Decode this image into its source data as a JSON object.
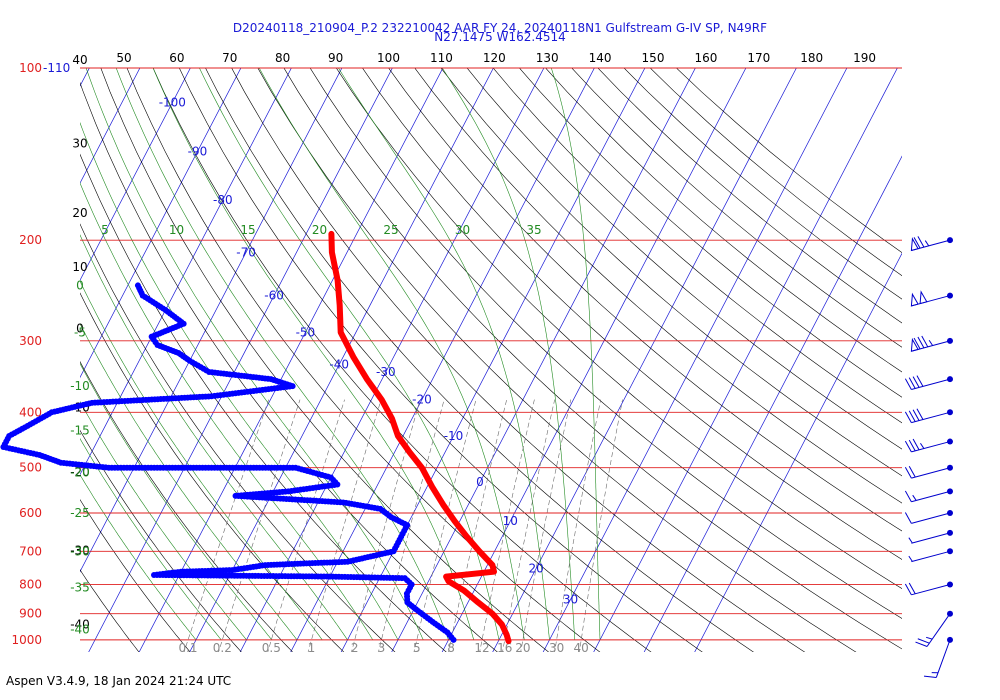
{
  "header": {
    "title_line1": "D20240118_210904_P.2 232210042 AAR FY 24, 20240118N1 Gulfstream G-IV SP, N49RF",
    "title_line2": "N27.1475 W162.4514"
  },
  "footer": {
    "version_text": "Aspen V3.4.9, 18 Jan 2024  21:24 UTC"
  },
  "chart_data": {
    "type": "skew-t",
    "colors": {
      "pressure_lines": "#e02020",
      "isotherms": "#1a1ad6",
      "dry_adiabats": "#000000",
      "moist_adiabats": "#228b22",
      "mixing_ratio": "#6a6a6a",
      "temperature_trace": "#ff0000",
      "dewpoint_trace": "#0000ff",
      "wind_barbs": "#0000cd",
      "theta_labels": "#000000",
      "pressure_labels": "#e02020"
    },
    "pressure_axis": {
      "levels": [
        100,
        200,
        300,
        400,
        500,
        600,
        700,
        800,
        900,
        1000
      ],
      "labels": [
        "100",
        "200",
        "300",
        "400",
        "500",
        "600",
        "700",
        "800",
        "900",
        "1000"
      ],
      "top_range_label": "-110"
    },
    "top_scale_labels": [
      "50",
      "60",
      "70",
      "80",
      "90",
      "100",
      "110",
      "120",
      "130",
      "140",
      "150",
      "160",
      "170",
      "180",
      "190"
    ],
    "isotherm_labels": [
      {
        "text": "-100",
        "t": -100,
        "p": 115
      },
      {
        "text": "-90",
        "t": -90,
        "p": 140
      },
      {
        "text": "-80",
        "t": -80,
        "p": 170
      },
      {
        "text": "-70",
        "t": -70,
        "p": 210
      },
      {
        "text": "-60",
        "t": -60,
        "p": 250
      },
      {
        "text": "-50",
        "t": -50,
        "p": 290
      },
      {
        "text": "-40",
        "t": -40,
        "p": 330
      },
      {
        "text": "-30",
        "t": -30,
        "p": 340
      },
      {
        "text": "-20",
        "t": -20,
        "p": 380
      },
      {
        "text": "-10",
        "t": -10,
        "p": 440
      },
      {
        "text": "0",
        "t": 0,
        "p": 530
      },
      {
        "text": "10",
        "t": 10,
        "p": 620
      },
      {
        "text": "20",
        "t": 20,
        "p": 750
      },
      {
        "text": "30",
        "t": 30,
        "p": 850
      }
    ],
    "theta_labels": [
      {
        "text": "40",
        "p": 100
      },
      {
        "text": "30",
        "p": 140
      },
      {
        "text": "20",
        "p": 185
      },
      {
        "text": "10",
        "p": 230
      },
      {
        "text": "0",
        "p": 295
      },
      {
        "text": "-10",
        "p": 405
      },
      {
        "text": "-20",
        "p": 525
      },
      {
        "text": "-30",
        "p": 720
      },
      {
        "text": "-40",
        "p": 970
      }
    ],
    "moist_labels_top": [
      "5",
      "10",
      "15",
      "20",
      "25",
      "30",
      "35"
    ],
    "moist_labels_left": [
      {
        "text": "0",
        "p": 240
      },
      {
        "text": "-5",
        "p": 290
      },
      {
        "text": "-10",
        "p": 360
      },
      {
        "text": "-15",
        "p": 430
      },
      {
        "text": "-20",
        "p": 510
      },
      {
        "text": "-25",
        "p": 600
      },
      {
        "text": "-30",
        "p": 700
      },
      {
        "text": "-35",
        "p": 810
      },
      {
        "text": "-40",
        "p": 960
      }
    ],
    "mixing_ratio_labels": [
      "0.1",
      "0.2",
      "0.5",
      "1",
      "2",
      "3",
      "5",
      "8",
      "12",
      "16",
      "20",
      "30",
      "40"
    ],
    "temperature": [
      {
        "p": 195,
        "t": -55
      },
      {
        "p": 210,
        "t": -53
      },
      {
        "p": 235,
        "t": -49
      },
      {
        "p": 260,
        "t": -46
      },
      {
        "p": 290,
        "t": -43
      },
      {
        "p": 320,
        "t": -38
      },
      {
        "p": 350,
        "t": -33
      },
      {
        "p": 380,
        "t": -28
      },
      {
        "p": 410,
        "t": -24
      },
      {
        "p": 440,
        "t": -21
      },
      {
        "p": 470,
        "t": -17
      },
      {
        "p": 500,
        "t": -13
      },
      {
        "p": 540,
        "t": -9
      },
      {
        "p": 580,
        "t": -5
      },
      {
        "p": 620,
        "t": -1
      },
      {
        "p": 660,
        "t": 3
      },
      {
        "p": 700,
        "t": 7
      },
      {
        "p": 740,
        "t": 11
      },
      {
        "p": 760,
        "t": 12
      },
      {
        "p": 775,
        "t": 3
      },
      {
        "p": 790,
        "t": 4
      },
      {
        "p": 820,
        "t": 8
      },
      {
        "p": 860,
        "t": 12
      },
      {
        "p": 900,
        "t": 16
      },
      {
        "p": 940,
        "t": 19
      },
      {
        "p": 980,
        "t": 21
      },
      {
        "p": 1005,
        "t": 22
      }
    ],
    "dewpoint": [
      {
        "p": 240,
        "t": -88
      },
      {
        "p": 250,
        "t": -86
      },
      {
        "p": 265,
        "t": -80
      },
      {
        "p": 280,
        "t": -75
      },
      {
        "p": 295,
        "t": -80
      },
      {
        "p": 305,
        "t": -78
      },
      {
        "p": 315,
        "t": -73
      },
      {
        "p": 325,
        "t": -70
      },
      {
        "p": 340,
        "t": -65
      },
      {
        "p": 350,
        "t": -52
      },
      {
        "p": 360,
        "t": -47
      },
      {
        "p": 375,
        "t": -62
      },
      {
        "p": 385,
        "t": -85
      },
      {
        "p": 400,
        "t": -92
      },
      {
        "p": 420,
        "t": -95
      },
      {
        "p": 440,
        "t": -98
      },
      {
        "p": 460,
        "t": -98
      },
      {
        "p": 475,
        "t": -90
      },
      {
        "p": 490,
        "t": -85
      },
      {
        "p": 500,
        "t": -75
      },
      {
        "p": 500,
        "t": -60
      },
      {
        "p": 500,
        "t": -38
      },
      {
        "p": 520,
        "t": -30
      },
      {
        "p": 535,
        "t": -28
      },
      {
        "p": 550,
        "t": -37
      },
      {
        "p": 560,
        "t": -47
      },
      {
        "p": 575,
        "t": -25
      },
      {
        "p": 590,
        "t": -17
      },
      {
        "p": 610,
        "t": -14
      },
      {
        "p": 630,
        "t": -10
      },
      {
        "p": 660,
        "t": -10
      },
      {
        "p": 700,
        "t": -10
      },
      {
        "p": 730,
        "t": -18
      },
      {
        "p": 740,
        "t": -34
      },
      {
        "p": 755,
        "t": -40
      },
      {
        "p": 760,
        "t": -50
      },
      {
        "p": 770,
        "t": -55
      },
      {
        "p": 775,
        "t": -20
      },
      {
        "p": 780,
        "t": -5
      },
      {
        "p": 800,
        "t": -3
      },
      {
        "p": 830,
        "t": -3
      },
      {
        "p": 860,
        "t": -2
      },
      {
        "p": 890,
        "t": 1
      },
      {
        "p": 930,
        "t": 5
      },
      {
        "p": 970,
        "t": 9
      },
      {
        "p": 1000,
        "t": 11
      }
    ],
    "wind_barbs": [
      {
        "p": 200,
        "dir": 255,
        "speed": 75
      },
      {
        "p": 250,
        "dir": 255,
        "speed": 100
      },
      {
        "p": 300,
        "dir": 255,
        "speed": 85
      },
      {
        "p": 350,
        "dir": 255,
        "speed": 40
      },
      {
        "p": 400,
        "dir": 255,
        "speed": 40
      },
      {
        "p": 450,
        "dir": 255,
        "speed": 35
      },
      {
        "p": 500,
        "dir": 255,
        "speed": 20
      },
      {
        "p": 550,
        "dir": 255,
        "speed": 15
      },
      {
        "p": 600,
        "dir": 255,
        "speed": 10
      },
      {
        "p": 650,
        "dir": 255,
        "speed": 5
      },
      {
        "p": 700,
        "dir": 255,
        "speed": 5
      },
      {
        "p": 800,
        "dir": 255,
        "speed": 20
      },
      {
        "p": 900,
        "dir": 215,
        "speed": 25
      },
      {
        "p": 1000,
        "dir": 200,
        "speed": 15
      }
    ]
  }
}
